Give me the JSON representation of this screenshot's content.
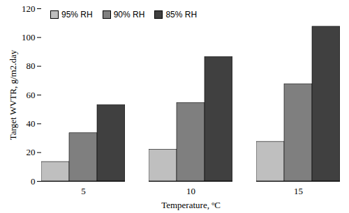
{
  "chart_data": {
    "type": "bar",
    "categories": [
      5,
      10,
      15
    ],
    "series": [
      {
        "name": "95% RH",
        "color": "#bfbfbf",
        "values": [
          13.5,
          22,
          27.5
        ]
      },
      {
        "name": "90% RH",
        "color": "#7f7f7f",
        "values": [
          33.5,
          54.5,
          67.5
        ]
      },
      {
        "name": "85% RH",
        "color": "#404040",
        "values": [
          53,
          86.5,
          107.5
        ]
      }
    ],
    "x_label": "Temperature, ºC",
    "y_label": "Target WVTR, g/m2.day",
    "ylim": [
      0,
      120
    ],
    "yticks": [
      0,
      20,
      40,
      60,
      80,
      100,
      120
    ],
    "grid": false,
    "legend": "top-left"
  }
}
